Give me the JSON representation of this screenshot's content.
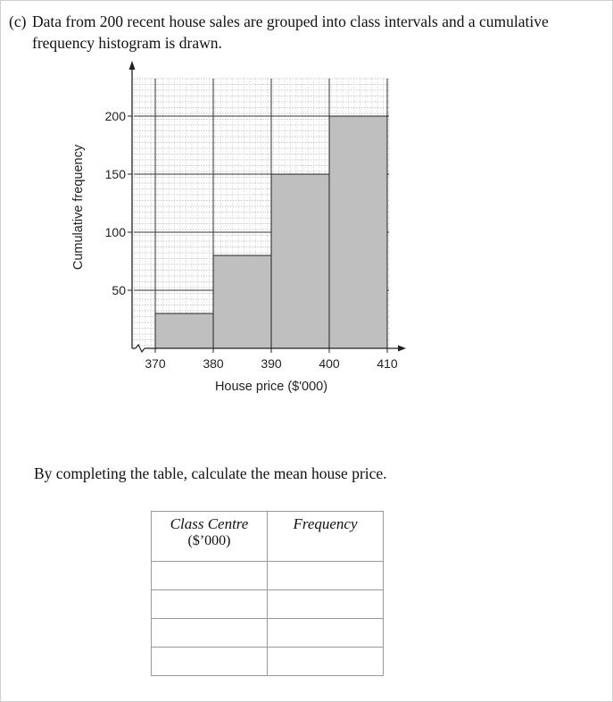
{
  "question": {
    "label": "(c)",
    "text_line1": "Data from 200 recent house sales are grouped into class intervals and a cumulative",
    "text_line2": "frequency histogram is drawn."
  },
  "chart_data": {
    "type": "bar",
    "subtype": "cumulative frequency histogram",
    "xlabel": "House price ($'000)",
    "ylabel": "Cumulative frequency",
    "x_ticks": [
      370,
      380,
      390,
      400,
      410
    ],
    "y_ticks": [
      50,
      100,
      150,
      200
    ],
    "xlim": [
      367,
      410
    ],
    "ylim": [
      0,
      220
    ],
    "bins": [
      {
        "from": 370,
        "to": 380,
        "value": 30
      },
      {
        "from": 380,
        "to": 390,
        "value": 80
      },
      {
        "from": 390,
        "to": 400,
        "value": 150
      },
      {
        "from": 400,
        "to": 410,
        "value": 200
      }
    ],
    "bar_color": "#bfbfbf",
    "grid": true,
    "axis_break_on_x": true
  },
  "prompt": "By completing the table, calculate the mean house price.",
  "table": {
    "col1_header": "Class Centre",
    "col1_sub": "($’000)",
    "col2_header": "Frequency",
    "rows": [
      [
        "",
        ""
      ],
      [
        "",
        ""
      ],
      [
        "",
        ""
      ],
      [
        "",
        ""
      ]
    ]
  }
}
